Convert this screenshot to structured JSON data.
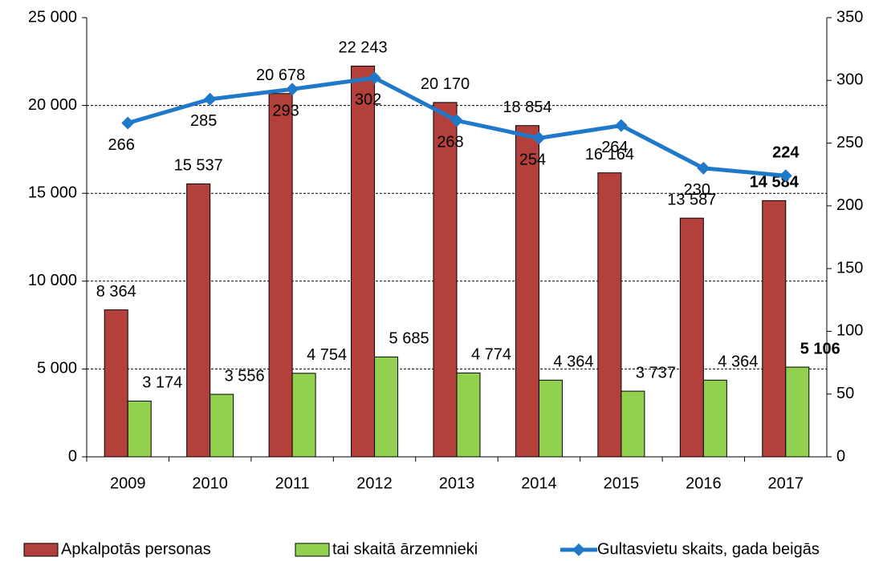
{
  "chart_data": {
    "type": "bar",
    "categories": [
      "2009",
      "2010",
      "2011",
      "2012",
      "2013",
      "2014",
      "2015",
      "2016",
      "2017"
    ],
    "series": [
      {
        "name": "Apkalpotās personas",
        "color": "#b3403a",
        "label_color": "#c0282d",
        "values": [
          8364,
          15537,
          20678,
          22243,
          20170,
          18854,
          16164,
          13587,
          14584
        ],
        "value_labels": [
          "8 364",
          "15 537",
          "20 678",
          "22 243",
          "20 170",
          "18 854",
          "16 164",
          "13 587",
          "14 584"
        ]
      },
      {
        "name": "tai skaitā ārzemnieki",
        "color": "#92d050",
        "label_color": "#4a7a2a",
        "values": [
          3174,
          3556,
          4754,
          5685,
          4774,
          4364,
          3737,
          4364,
          5106
        ],
        "value_labels": [
          "3 174",
          "3 556",
          "4 754",
          "5 685",
          "4 774",
          "4 364",
          "3 737",
          "4 364",
          "5 106"
        ]
      },
      {
        "name": "Gultasvietu skaits, gada beigās",
        "type": "line",
        "axis": "y2",
        "color": "#1f78c8",
        "label_color": "#2a7fc8",
        "values": [
          266,
          285,
          293,
          302,
          268,
          254,
          264,
          230,
          224
        ]
      }
    ],
    "ylim": [
      0,
      25000
    ],
    "yticks": [
      0,
      {
        "value": 5000,
        "label": "5 000"
      },
      {
        "value": 10000,
        "label": "10 000"
      },
      {
        "value": 15000,
        "label": "15 000"
      },
      {
        "value": 20000,
        "label": "20 000"
      },
      {
        "value": 25000,
        "label": "25 000"
      }
    ],
    "y2lim": [
      0,
      350
    ],
    "y2ticks": [
      0,
      50,
      100,
      150,
      200,
      250,
      300,
      350
    ],
    "grid": true,
    "legend": "bottom"
  }
}
